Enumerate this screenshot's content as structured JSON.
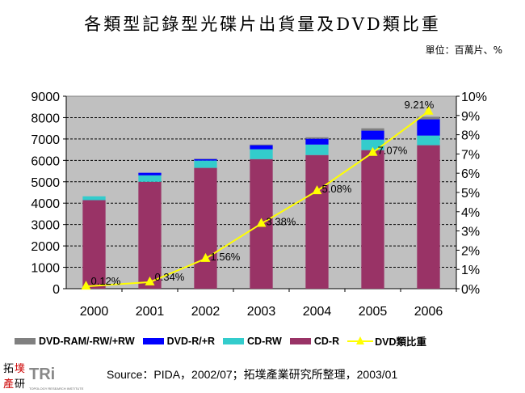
{
  "title": "各類型記錄型光碟片出貨量及DVD類比重",
  "unit": "單位：百萬片、%",
  "source": "Source：PIDA，2002/07；拓墣產業研究所整理，2003/01",
  "logo_text": "拓墣產研 TRi TOPOLOGY RESEARCH INSTITUTE",
  "chart_data": {
    "type": "bar",
    "stacked": true,
    "categories": [
      "2000",
      "2001",
      "2002",
      "2003",
      "2004",
      "2005",
      "2006"
    ],
    "ylim": [
      0,
      9000
    ],
    "yticks": [
      "0",
      "1000",
      "2000",
      "3000",
      "4000",
      "5000",
      "6000",
      "7000",
      "8000",
      "9000"
    ],
    "y2lim": [
      0,
      10
    ],
    "y2ticks": [
      "0%",
      "1%",
      "2%",
      "3%",
      "4%",
      "5%",
      "6%",
      "7%",
      "8%",
      "9%",
      "10%"
    ],
    "grid": true,
    "legend_position": "bottom",
    "series": [
      {
        "name": "CD-R",
        "color": "#993366",
        "values": [
          4140,
          5000,
          5650,
          6060,
          6250,
          6480,
          6710
        ]
      },
      {
        "name": "CD-RW",
        "color": "#33CCCC",
        "values": [
          180,
          300,
          340,
          460,
          490,
          490,
          450
        ]
      },
      {
        "name": "DVD-R/+R",
        "color": "#0000FF",
        "values": [
          0,
          120,
          70,
          190,
          270,
          420,
          760
        ]
      },
      {
        "name": "DVD-RAM/-RW/+RW",
        "color": "#808080",
        "values": [
          0,
          0,
          20,
          30,
          70,
          110,
          120
        ]
      }
    ],
    "line_series": {
      "name": "DVD類比重",
      "color": "#FFFF00",
      "axis": "right",
      "values": [
        0.12,
        0.34,
        1.56,
        3.38,
        5.08,
        7.07,
        9.21
      ],
      "labels": [
        "0.12%",
        "0.34%",
        "1.56%",
        "3.38%",
        "5.08%",
        "7.07%",
        "9.21%"
      ]
    },
    "legend_order": [
      "DVD-RAM/-RW/+RW",
      "DVD-R/+R",
      "CD-RW",
      "CD-R",
      "DVD類比重"
    ]
  }
}
